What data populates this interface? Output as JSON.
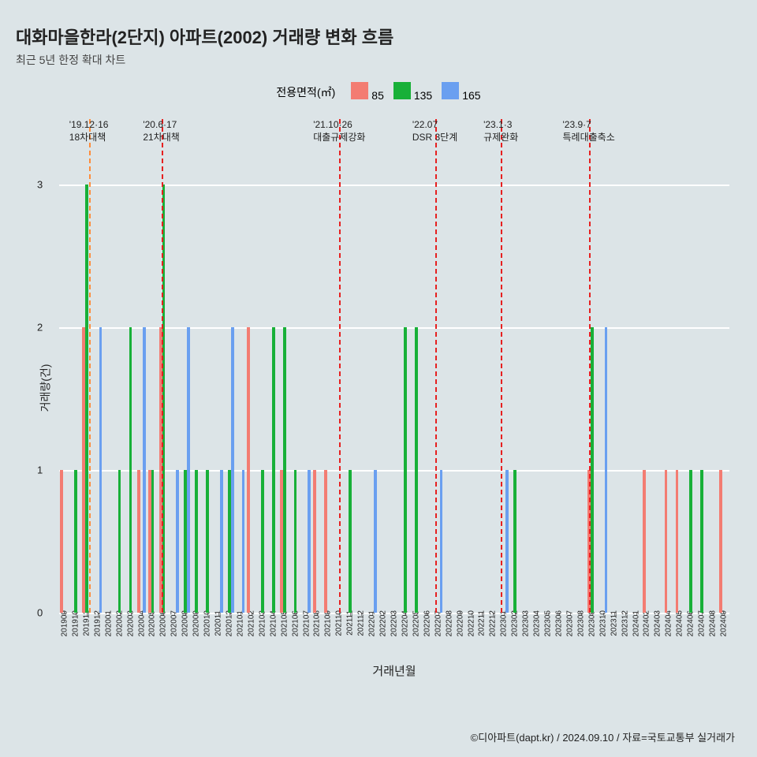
{
  "title": "대화마을한라(2단지) 아파트(2002) 거래량 변화 흐름",
  "subtitle": "최근 5년 한정 확대 차트",
  "legend": {
    "label": "전용면적(㎡)",
    "items": [
      {
        "label": "85",
        "color": "#f37c72"
      },
      {
        "label": "135",
        "color": "#18b038"
      },
      {
        "label": "165",
        "color": "#6a9ff0"
      }
    ]
  },
  "ylabel": "거래량(건)",
  "xlabel": "거래년월",
  "credit": "©디아파트(dapt.kr) / 2024.09.10 / 자료=국토교통부 실거래가",
  "ymax": 3.15,
  "yticks": [
    0,
    1,
    2,
    3
  ],
  "months": [
    "201909",
    "201910",
    "201911",
    "201912",
    "202001",
    "202002",
    "202003",
    "202004",
    "202005",
    "202006",
    "202007",
    "202008",
    "202009",
    "202010",
    "202011",
    "202012",
    "202101",
    "202102",
    "202103",
    "202104",
    "202105",
    "202106",
    "202107",
    "202108",
    "202109",
    "202110",
    "202111",
    "202112",
    "202201",
    "202202",
    "202203",
    "202204",
    "202205",
    "202206",
    "202207",
    "202208",
    "202209",
    "202210",
    "202211",
    "202212",
    "202301",
    "202302",
    "202303",
    "202304",
    "202305",
    "202306",
    "202307",
    "202308",
    "202309",
    "202310",
    "202311",
    "202312",
    "202401",
    "202402",
    "202403",
    "202404",
    "202405",
    "202406",
    "202407",
    "202408",
    "202409"
  ],
  "series": {
    "85": [
      1,
      0,
      2,
      0,
      0,
      0,
      0,
      1,
      1,
      2,
      0,
      0,
      0,
      0,
      0,
      0,
      0,
      2,
      0,
      0,
      1,
      0,
      0,
      1,
      1,
      0,
      0,
      0,
      0,
      0,
      0,
      0,
      0,
      0,
      0,
      0,
      0,
      0,
      0,
      0,
      0,
      0,
      0,
      0,
      0,
      0,
      0,
      0,
      1,
      0,
      0,
      0,
      0,
      1,
      0,
      1,
      1,
      0,
      0,
      0,
      1
    ],
    "135": [
      0,
      1,
      3,
      0,
      0,
      1,
      2,
      0,
      1,
      3,
      0,
      1,
      1,
      1,
      0,
      1,
      0,
      0,
      1,
      2,
      2,
      1,
      0,
      0,
      0,
      0,
      1,
      0,
      0,
      0,
      0,
      2,
      2,
      0,
      0,
      0,
      0,
      0,
      0,
      0,
      0,
      1,
      0,
      0,
      0,
      0,
      0,
      0,
      2,
      0,
      0,
      0,
      0,
      0,
      0,
      0,
      0,
      1,
      1,
      0,
      0
    ],
    "165": [
      0,
      0,
      0,
      2,
      0,
      0,
      0,
      2,
      0,
      0,
      1,
      2,
      0,
      0,
      1,
      2,
      1,
      0,
      0,
      0,
      0,
      0,
      1,
      0,
      0,
      0,
      0,
      0,
      1,
      0,
      0,
      0,
      0,
      0,
      1,
      0,
      0,
      0,
      0,
      0,
      1,
      0,
      0,
      0,
      0,
      0,
      0,
      0,
      0,
      2,
      0,
      0,
      0,
      0,
      0,
      0,
      0,
      0,
      0,
      0,
      0
    ]
  },
  "policy_lines": [
    {
      "month": "201911",
      "offset": 0.7,
      "color": "#ff8c3a",
      "label1": "'19.12·16",
      "label2": "18차대책"
    },
    {
      "month": "202006",
      "offset": 0.3,
      "color": "#e62020",
      "label1": "'20.6·17",
      "label2": "21차대책"
    },
    {
      "month": "202110",
      "offset": 0.5,
      "color": "#e62020",
      "label1": "'21.10·26",
      "label2": "대출규제강화"
    },
    {
      "month": "202207",
      "offset": 0.2,
      "color": "#e62020",
      "label1": "'22.07",
      "label2": "DSR 3단계"
    },
    {
      "month": "202301",
      "offset": 0.2,
      "color": "#e62020",
      "label1": "'23.1·3",
      "label2": "규제완화"
    },
    {
      "month": "202309",
      "offset": 0.2,
      "color": "#e62020",
      "label1": "'23.9·7",
      "label2": "특례대출축소"
    }
  ],
  "colors": {
    "85": "#f37c72",
    "135": "#18b038",
    "165": "#6a9ff0"
  }
}
